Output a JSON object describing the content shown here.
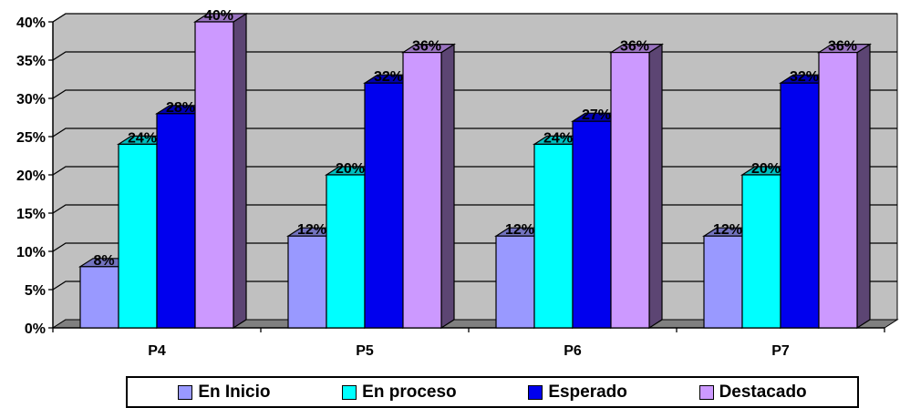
{
  "chart_data": {
    "type": "bar",
    "categories": [
      "P4",
      "P5",
      "P6",
      "P7"
    ],
    "series": [
      {
        "name": "En Inicio",
        "values": [
          8,
          12,
          12,
          12
        ],
        "color": "#9999ff"
      },
      {
        "name": "En proceso",
        "values": [
          24,
          20,
          24,
          20
        ],
        "color": "#00ffff"
      },
      {
        "name": "Esperado",
        "values": [
          28,
          32,
          27,
          32
        ],
        "color": "#0000ee"
      },
      {
        "name": "Destacado",
        "values": [
          40,
          36,
          36,
          36
        ],
        "color": "#cc99ff"
      }
    ],
    "ylim": [
      0,
      40
    ],
    "yticks": [
      "0%",
      "5%",
      "10%",
      "15%",
      "20%",
      "25%",
      "30%",
      "35%",
      "40%"
    ],
    "value_suffix": "%",
    "grid": true,
    "legend_position": "bottom",
    "wall_color": "#c0c0c0",
    "floor_color": "#808080"
  }
}
